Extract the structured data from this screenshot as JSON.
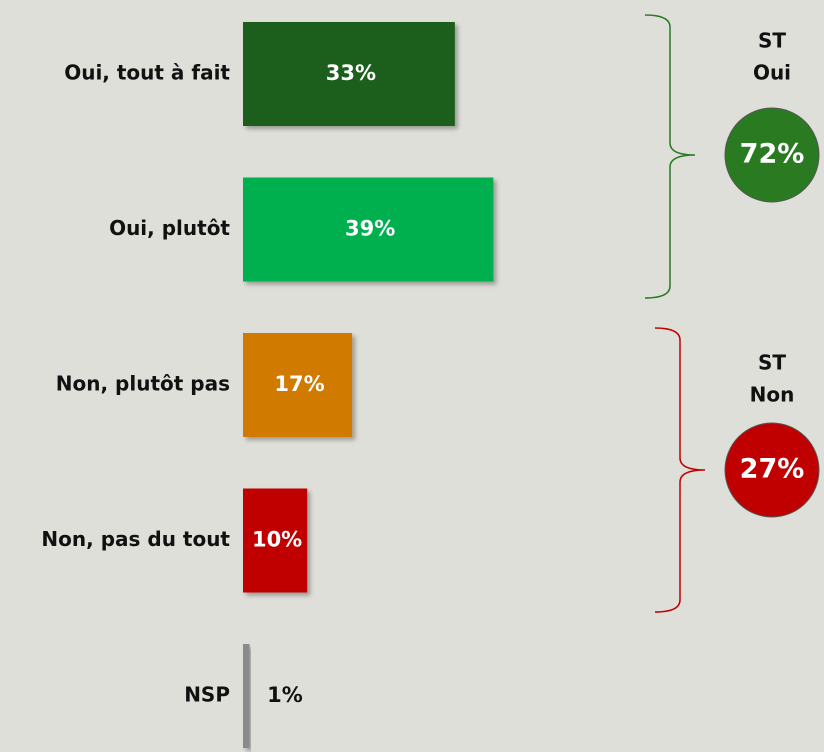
{
  "chart_data": {
    "type": "bar",
    "categories": [
      "Oui, tout à fait",
      "Oui, plutôt",
      "Non, plutôt pas",
      "Non, pas du tout",
      "NSP"
    ],
    "values": [
      33,
      39,
      17,
      10,
      1
    ],
    "value_labels": [
      "33%",
      "39%",
      "17%",
      "10%",
      "1%"
    ],
    "colors": [
      "#1e5e1e",
      "#00b050",
      "#d07a00",
      "#c00000",
      "#8a8a8a"
    ],
    "groups": [
      {
        "label": [
          "ST",
          "Oui"
        ],
        "value": 72,
        "value_label": "72%",
        "color": "#2a7a22"
      },
      {
        "label": [
          "ST",
          "Non"
        ],
        "value": 27,
        "value_label": "27%",
        "color": "#c00000"
      }
    ]
  }
}
